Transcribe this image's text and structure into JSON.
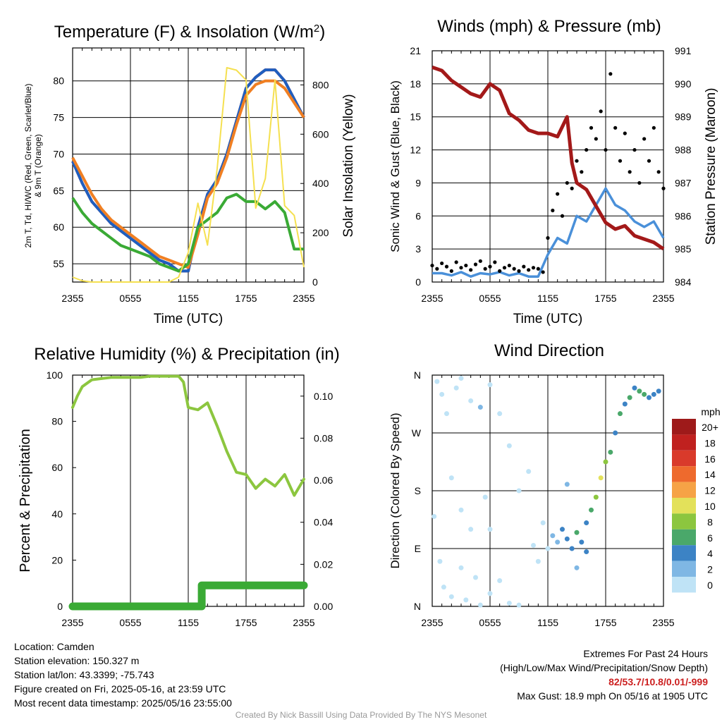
{
  "chart_data": [
    {
      "id": "temp",
      "type": "line",
      "title_main": "Temperature (F) & Insolation (W/m",
      "title_sup": "2",
      "title_close": ")",
      "xlabel": "Time (UTC)",
      "ylabel_line1": "2m T, Td, HI/WC (Red, Green, Scarlet/Blue)",
      "ylabel_line2": "& 9m T (Orange)",
      "y2label": "Solar Insolation (Yellow)",
      "x_ticks": [
        "2355",
        "0555",
        "1155",
        "1755",
        "2355"
      ],
      "ylim": [
        52.5,
        84.5
      ],
      "y_ticks": [
        55,
        60,
        65,
        70,
        75,
        80
      ],
      "y2lim": [
        0,
        950
      ],
      "y2_ticks": [
        0,
        200,
        400,
        600,
        800
      ],
      "series": [
        {
          "color": "#d62728",
          "axis": "left",
          "x": [
            0,
            1,
            2,
            3,
            4,
            5,
            6,
            7,
            8,
            9,
            10,
            11,
            12,
            13,
            14,
            15,
            16,
            17,
            18,
            19,
            20,
            21,
            22,
            23,
            24
          ],
          "values": [
            69,
            66,
            63.5,
            62,
            60.5,
            59.5,
            58.5,
            57.5,
            56.5,
            55.5,
            55,
            54,
            54,
            60,
            64.5,
            66.5,
            70,
            74.5,
            79,
            80.5,
            81.5,
            81.5,
            80,
            77.5,
            75
          ]
        },
        {
          "color": "#1f5fbf",
          "axis": "left",
          "x": [
            0,
            1,
            2,
            3,
            4,
            5,
            6,
            7,
            8,
            9,
            10,
            11,
            12,
            13,
            14,
            15,
            16,
            17,
            18,
            19,
            20,
            21,
            22,
            23,
            24
          ],
          "values": [
            69,
            66,
            63.5,
            62,
            60.5,
            59.5,
            58.5,
            57.5,
            56.5,
            55.5,
            55,
            54,
            54,
            60,
            64.5,
            66.5,
            70,
            74.5,
            79,
            80.5,
            81.5,
            81.5,
            80,
            77.5,
            75
          ]
        },
        {
          "color": "#f07f22",
          "axis": "left",
          "x": [
            0,
            1,
            2,
            3,
            4,
            5,
            6,
            7,
            8,
            9,
            10,
            11,
            12,
            13,
            14,
            15,
            16,
            17,
            18,
            19,
            20,
            21,
            22,
            23,
            24
          ],
          "values": [
            69.5,
            67,
            64.5,
            62.5,
            61,
            60,
            59,
            58,
            57,
            56,
            55.5,
            55,
            54.5,
            59,
            64,
            66,
            69.5,
            74,
            78,
            79.5,
            80,
            80,
            79,
            77,
            75
          ]
        },
        {
          "color": "#3aaa35",
          "axis": "left",
          "x": [
            0,
            1,
            2,
            3,
            4,
            5,
            6,
            7,
            8,
            9,
            10,
            11,
            12,
            13,
            14,
            15,
            16,
            17,
            18,
            19,
            20,
            21,
            22,
            23,
            24
          ],
          "values": [
            64,
            62,
            60.5,
            59.5,
            58.5,
            57.5,
            57,
            56.5,
            56,
            55,
            54.5,
            54,
            55,
            60,
            61,
            62,
            64,
            64.5,
            63.5,
            63.5,
            62.5,
            63.5,
            62,
            57,
            57
          ]
        },
        {
          "color": "#f5e050",
          "axis": "right",
          "x": [
            0,
            1,
            2,
            3,
            4,
            5,
            6,
            7,
            8,
            9,
            10,
            11,
            12,
            13,
            14,
            15,
            16,
            17,
            18,
            19,
            20,
            21,
            22,
            23,
            24
          ],
          "values": [
            20,
            5,
            0,
            0,
            0,
            0,
            0,
            0,
            0,
            0,
            0,
            20,
            120,
            320,
            150,
            460,
            870,
            860,
            820,
            300,
            420,
            820,
            310,
            270,
            60
          ]
        }
      ]
    },
    {
      "id": "wind",
      "type": "scatter",
      "title": "Winds (mph) & Pressure (mb)",
      "xlabel": "Time (UTC)",
      "ylabel": "Sonic Wind & Gust (Blue, Black)",
      "y2label": "Station Pressure (Maroon)",
      "x_ticks": [
        "2355",
        "0555",
        "1155",
        "1755",
        "2355"
      ],
      "ylim": [
        0,
        21
      ],
      "y_ticks": [
        0,
        3,
        6,
        9,
        12,
        15,
        18,
        21
      ],
      "y2lim": [
        984,
        991
      ],
      "y2_ticks": [
        984,
        985,
        986,
        987,
        988,
        989,
        990,
        991
      ],
      "series": [
        {
          "color": "#4a90d9",
          "kind": "line",
          "axis": "left",
          "x": [
            0,
            1,
            2,
            3,
            4,
            5,
            6,
            7,
            8,
            9,
            10,
            11,
            12,
            13,
            14,
            15,
            16,
            17,
            18,
            19,
            20,
            21,
            22,
            23,
            24
          ],
          "values": [
            0.8,
            0.8,
            0.6,
            0.9,
            0.5,
            0.8,
            0.7,
            0.9,
            0.6,
            0.8,
            0.5,
            0.5,
            2.5,
            4,
            3.5,
            6,
            5.5,
            7,
            8.5,
            7,
            6.5,
            5.5,
            5,
            5.5,
            4
          ]
        },
        {
          "color": "#000000",
          "kind": "points",
          "axis": "left",
          "x": [
            0,
            0.5,
            1,
            1.5,
            2,
            2.5,
            3,
            3.5,
            4,
            4.5,
            5,
            5.5,
            6,
            6.5,
            7,
            7.5,
            8,
            8.5,
            9,
            9.5,
            10,
            10.5,
            11,
            11.5,
            12,
            12.5,
            13,
            13.5,
            14,
            14.5,
            15,
            15.5,
            16,
            16.5,
            17,
            17.5,
            18,
            18.5,
            19,
            19.5,
            20,
            20.5,
            21,
            21.5,
            22,
            22.5,
            23,
            23.5,
            24
          ],
          "values": [
            1.5,
            1.2,
            1.7,
            1.4,
            1.0,
            1.8,
            1.3,
            1.5,
            1.1,
            1.6,
            1.9,
            1.2,
            1.4,
            1.8,
            1.0,
            1.3,
            1.5,
            1.2,
            1.0,
            1.4,
            1.1,
            1.3,
            1.2,
            0.9,
            4,
            6.5,
            8,
            6,
            9,
            8.5,
            11,
            10,
            12,
            14,
            13,
            15.5,
            12,
            18.9,
            14,
            11,
            13.5,
            10,
            12,
            9,
            13,
            11,
            14,
            10,
            8.5
          ]
        },
        {
          "color": "#a31919",
          "kind": "line",
          "axis": "right",
          "x": [
            0,
            1,
            2,
            3,
            4,
            5,
            6,
            7,
            8,
            9,
            10,
            11,
            12,
            13,
            14,
            14.5,
            15,
            16,
            17,
            18,
            19,
            20,
            21,
            22,
            23,
            24
          ],
          "values": [
            990.5,
            990.4,
            990.1,
            989.9,
            989.7,
            989.6,
            990.0,
            989.8,
            989.1,
            988.9,
            988.6,
            988.5,
            988.5,
            988.4,
            989.0,
            987.6,
            987.0,
            986.8,
            986.3,
            985.8,
            985.6,
            985.7,
            985.4,
            985.3,
            985.2,
            985.0
          ]
        }
      ]
    },
    {
      "id": "rh",
      "type": "line",
      "title": "Relative Humidity (%) & Precipitation (in)",
      "ylabel": "Percent & Precipitation",
      "x_ticks": [
        "2355",
        "0555",
        "1155",
        "1755",
        "2355"
      ],
      "ylim": [
        0,
        100
      ],
      "y_ticks": [
        0,
        20,
        40,
        60,
        80,
        100
      ],
      "y2lim": [
        0,
        0.11
      ],
      "y2_ticks": [
        "0.00",
        "0.02",
        "0.04",
        "0.06",
        "0.08",
        "0.10"
      ],
      "series": [
        {
          "color": "#8cc63f",
          "axis": "left",
          "x": [
            0,
            0.5,
            1,
            2,
            3,
            4,
            5,
            6,
            7,
            8,
            9,
            10,
            11,
            11.5,
            12,
            12.5,
            13,
            14,
            15,
            16,
            17,
            18,
            19,
            20,
            21,
            22,
            23,
            24
          ],
          "values": [
            86,
            91,
            95,
            98,
            98.5,
            99,
            99,
            99,
            99,
            99.5,
            99.5,
            99.5,
            99.5,
            97,
            86,
            85.5,
            85,
            88,
            78,
            67,
            58,
            57,
            51,
            55,
            52,
            57,
            48,
            55
          ]
        },
        {
          "color": "#3aaa35",
          "axis": "right",
          "x": [
            0,
            13.4,
            13.4,
            24
          ],
          "values": [
            0.0,
            0.0,
            0.01,
            0.01
          ]
        }
      ]
    },
    {
      "id": "wdir",
      "type": "scatter",
      "title": "Wind Direction",
      "ylabel": "Direction (Colored By Speed)",
      "x_ticks": [
        "2355",
        "0555",
        "1155",
        "1755",
        "2355"
      ],
      "y_ticks": [
        "N",
        "E",
        "S",
        "W",
        "N"
      ],
      "ylim": [
        0,
        360
      ],
      "colorbar_title": "mph",
      "colorbar_labels": [
        "20+",
        "18",
        "16",
        "14",
        "12",
        "10",
        "8",
        "6",
        "4",
        "2",
        "0"
      ],
      "colorbar_colors": [
        "#9e1a1a",
        "#c0211f",
        "#d93a2b",
        "#ee6a2d",
        "#f6a346",
        "#e3e15a",
        "#8cc63f",
        "#4aa86a",
        "#3c83c5",
        "#7fb7e4",
        "#bfe3f6"
      ],
      "points": [
        [
          0.5,
          350,
          0
        ],
        [
          1,
          330,
          1
        ],
        [
          1.5,
          300,
          1
        ],
        [
          2.5,
          340,
          1
        ],
        [
          3,
          355,
          1
        ],
        [
          4,
          320,
          1
        ],
        [
          5,
          310,
          2
        ],
        [
          6,
          345,
          1
        ],
        [
          0.2,
          140,
          0
        ],
        [
          0.8,
          70,
          1
        ],
        [
          1.2,
          30,
          1
        ],
        [
          2,
          15,
          1
        ],
        [
          3,
          60,
          1
        ],
        [
          3.5,
          10,
          1
        ],
        [
          4.5,
          45,
          1
        ],
        [
          5,
          2,
          1
        ],
        [
          6,
          20,
          1
        ],
        [
          7,
          40,
          1
        ],
        [
          8,
          5,
          1
        ],
        [
          9,
          2,
          1
        ],
        [
          2,
          200,
          1
        ],
        [
          3,
          150,
          1
        ],
        [
          4,
          120,
          1
        ],
        [
          5.5,
          170,
          1
        ],
        [
          6,
          120,
          1
        ],
        [
          7,
          300,
          1
        ],
        [
          8,
          250,
          1
        ],
        [
          9,
          180,
          1
        ],
        [
          10,
          210,
          1
        ],
        [
          10.5,
          95,
          1
        ],
        [
          11,
          70,
          1
        ],
        [
          11.5,
          130,
          1
        ],
        [
          12,
          90,
          1
        ],
        [
          12.5,
          110,
          2
        ],
        [
          13,
          100,
          3
        ],
        [
          13.5,
          120,
          4
        ],
        [
          14,
          105,
          5
        ],
        [
          14.5,
          90,
          4
        ],
        [
          15,
          115,
          6
        ],
        [
          15.5,
          100,
          4
        ],
        [
          16,
          130,
          5
        ],
        [
          16.5,
          150,
          7
        ],
        [
          17,
          170,
          9
        ],
        [
          17.5,
          200,
          10
        ],
        [
          18,
          225,
          8
        ],
        [
          18.5,
          240,
          6
        ],
        [
          19,
          270,
          5
        ],
        [
          19.5,
          300,
          6
        ],
        [
          20,
          315,
          4
        ],
        [
          20.5,
          325,
          6
        ],
        [
          21,
          340,
          5
        ],
        [
          21.5,
          335,
          7
        ],
        [
          22,
          330,
          6
        ],
        [
          22.5,
          325,
          5
        ],
        [
          23,
          330,
          4
        ],
        [
          23.5,
          335,
          5
        ],
        [
          15,
          60,
          3
        ],
        [
          16,
          85,
          4
        ],
        [
          14,
          190,
          3
        ]
      ]
    }
  ],
  "info": {
    "location": "Location: Camden",
    "elevation": "Station elevation: 150.327 m",
    "latlon": "Station lat/lon: 43.3399; -75.743",
    "created": "Figure created on Fri, 2025-05-16, at 23:59 UTC",
    "recent": "Most recent data timestamp: 2025/05/16 23:55:00"
  },
  "extremes": {
    "title": "Extremes For Past 24 Hours",
    "subtitle": "(High/Low/Max Wind/Precipitation/Snow Depth)",
    "values": "82/53.7/10.8/0.01/-999",
    "gust": "Max Gust: 18.9 mph On 05/16 at 1905 UTC"
  },
  "footer": "Created By Nick Bassill Using Data Provided By The NYS Mesonet"
}
